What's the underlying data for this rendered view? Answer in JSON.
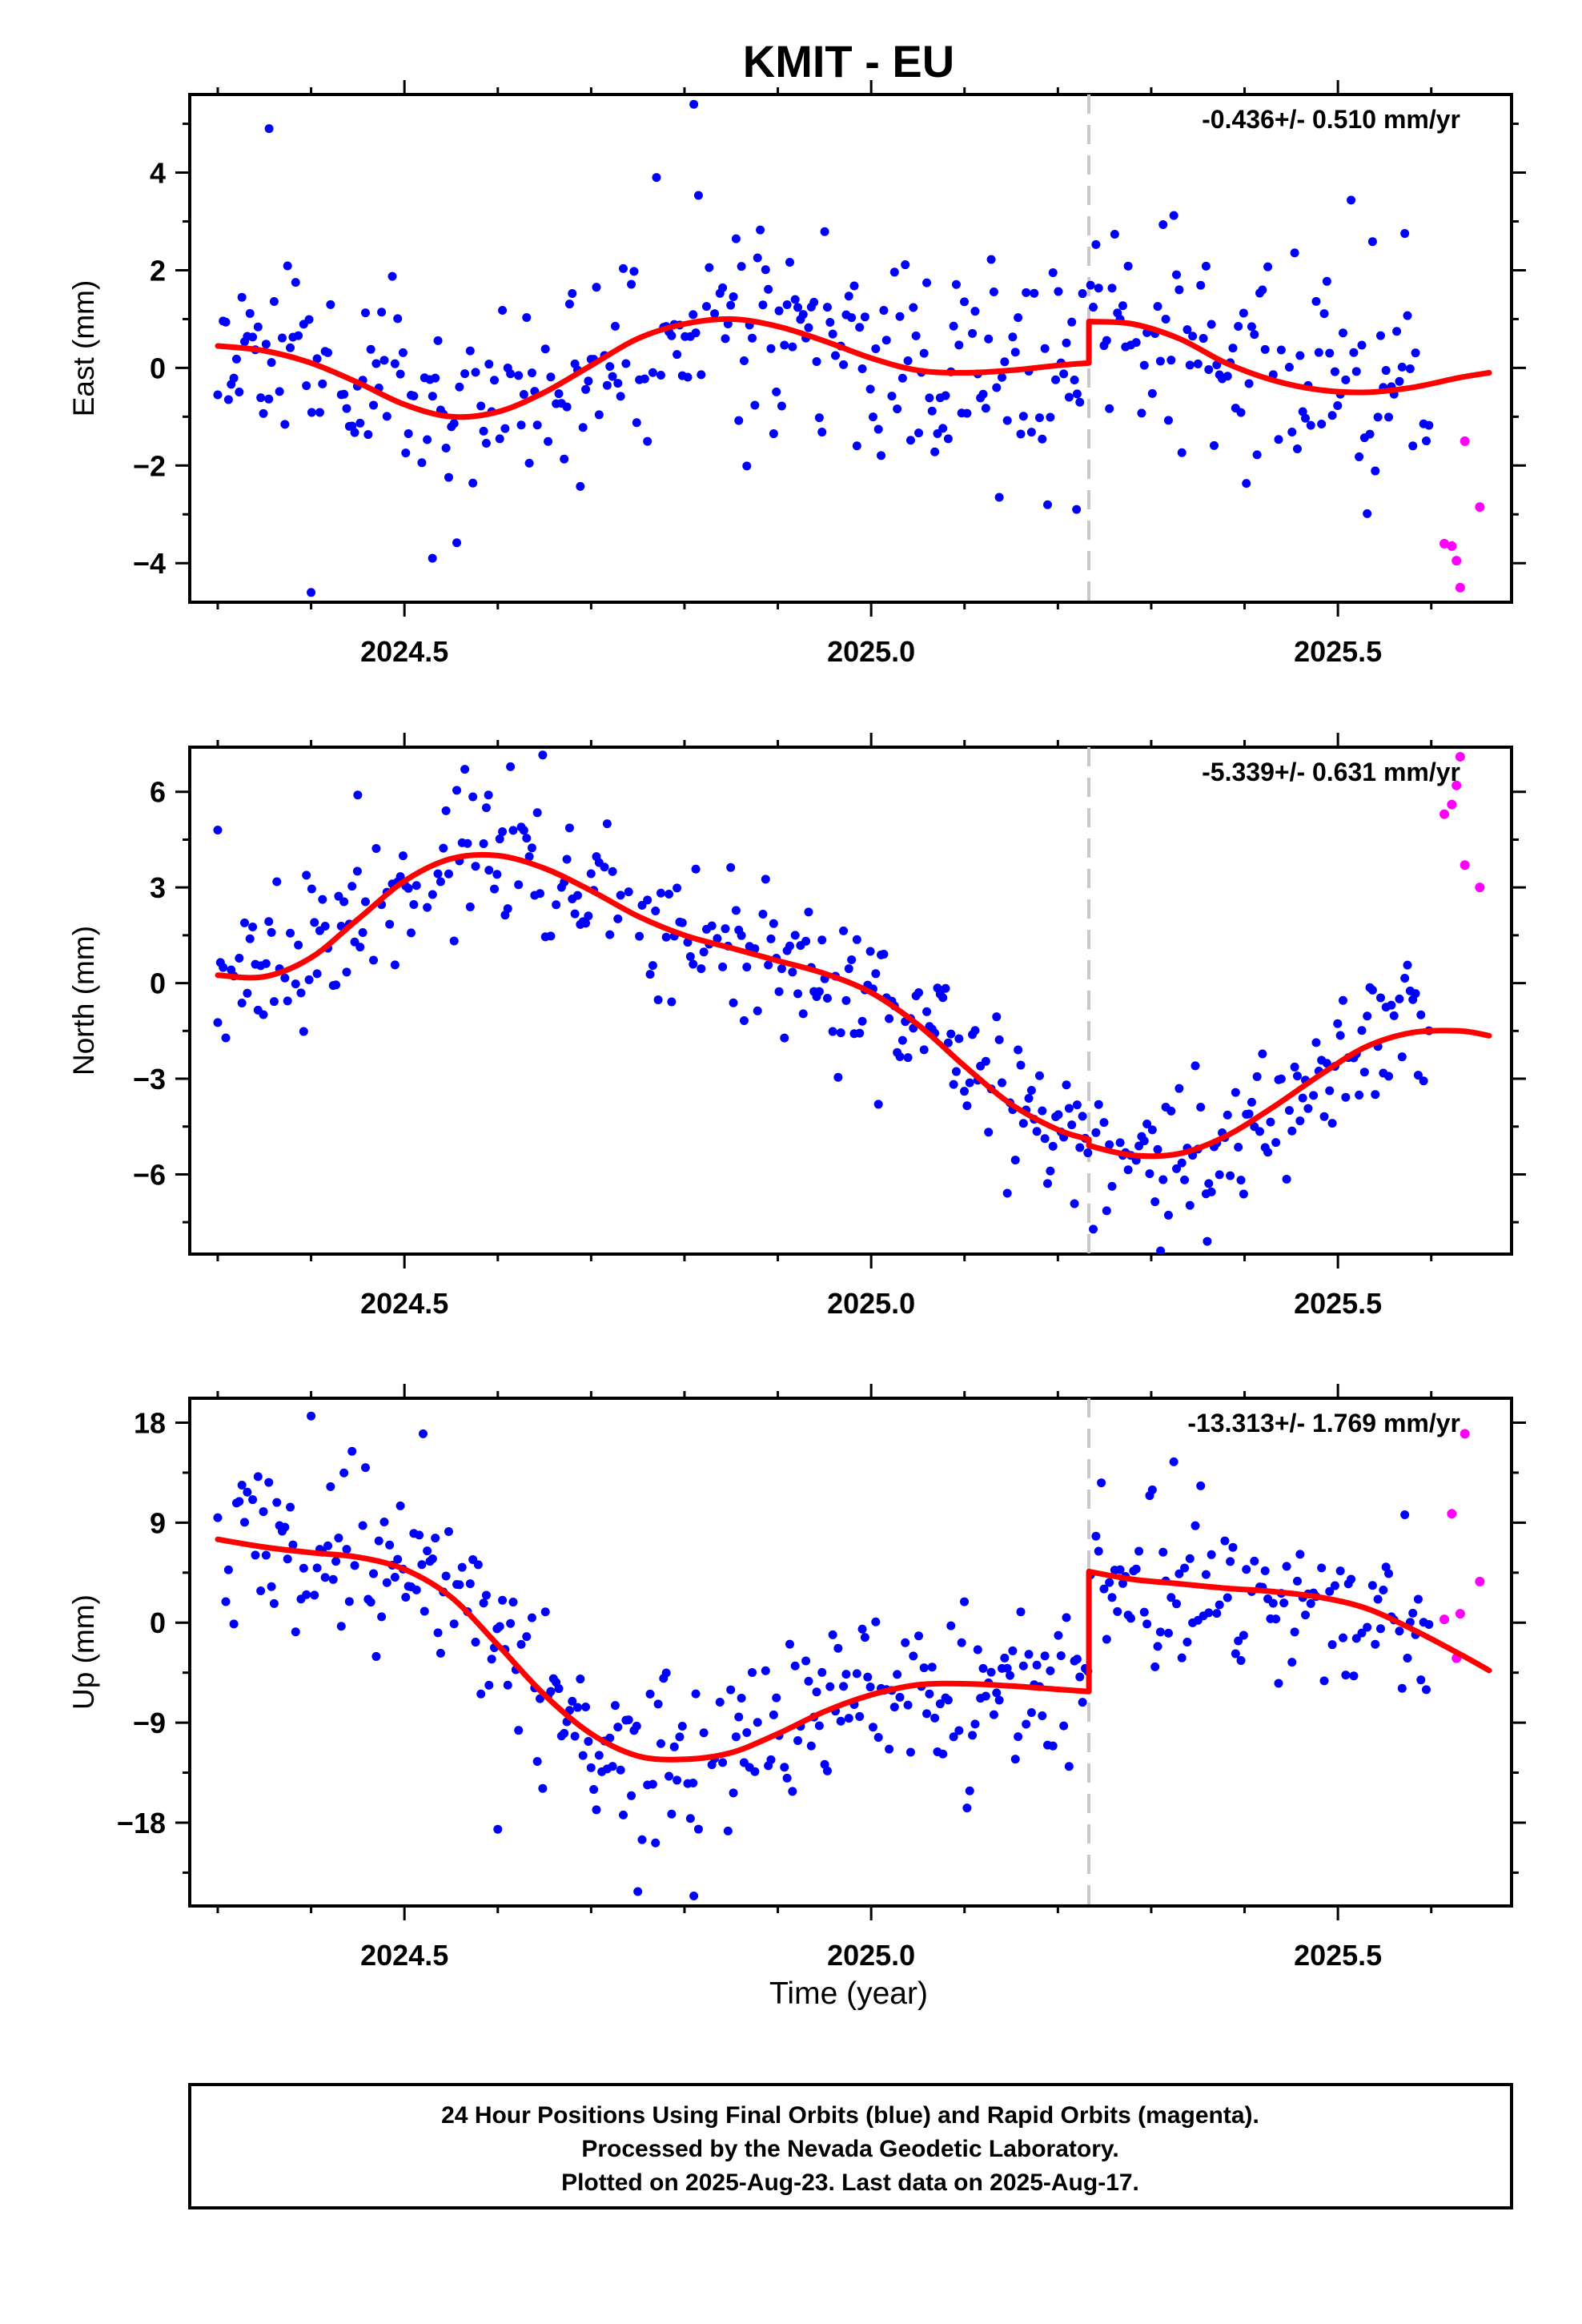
{
  "title": "KMIT - EU",
  "x_axis_label": "Time (year)",
  "colors": {
    "final": "#0000ff",
    "rapid": "#ff00ff",
    "model": "#ff0000",
    "break": "#c8c8c8",
    "frame": "#000000"
  },
  "footer": {
    "line1": "24 Hour Positions Using Final Orbits (blue) and Rapid Orbits (magenta).",
    "line2": "Processed by the Nevada Geodetic Laboratory.",
    "line3": "Plotted on 2025-Aug-23. Last data on 2025-Aug-17."
  },
  "chart_data": [
    {
      "type": "scatter",
      "ylabel": "East (mm)",
      "rate_label": "-0.436+/- 0.510 mm/yr",
      "xlim": [
        2024.27,
        2025.686
      ],
      "ylim": [
        -4.8,
        5.6
      ],
      "x_ticks": [
        2024.5,
        2025.0,
        2025.5
      ],
      "x_tick_labels": [
        "2024.5",
        "2025.0",
        "2025.5"
      ],
      "y_ticks": [
        -4,
        -2,
        0,
        2,
        4
      ],
      "y_tick_labels": [
        "−4",
        "−2",
        "0",
        "2",
        "4"
      ],
      "break_x": 2025.2332,
      "seed": 11,
      "noise": 1.05,
      "outliers": [
        [
          2024.355,
          4.9
        ],
        [
          2024.81,
          5.4
        ],
        [
          2024.4,
          -4.6
        ],
        [
          2024.53,
          -3.9
        ],
        [
          2025.22,
          -2.9
        ],
        [
          2024.77,
          3.9
        ]
      ],
      "model": {
        "segments": [
          {
            "x": [
              2024.3,
              2024.35,
              2024.4,
              2024.45,
              2024.5,
              2024.55,
              2024.6,
              2024.65,
              2024.7,
              2024.75,
              2024.8,
              2024.85,
              2024.9,
              2024.95,
              2025.0,
              2025.05,
              2025.1,
              2025.15,
              2025.2,
              2025.2332
            ],
            "y": [
              0.45,
              0.35,
              0.1,
              -0.3,
              -0.75,
              -1.0,
              -0.9,
              -0.5,
              0.05,
              0.6,
              0.9,
              1.0,
              0.85,
              0.55,
              0.2,
              -0.05,
              -0.1,
              -0.05,
              0.05,
              0.1
            ]
          },
          {
            "x": [
              2025.2332,
              2025.28,
              2025.33,
              2025.38,
              2025.43,
              2025.48,
              2025.53,
              2025.58,
              2025.63,
              2025.662
            ],
            "y": [
              0.95,
              0.9,
              0.6,
              0.1,
              -0.25,
              -0.45,
              -0.5,
              -0.4,
              -0.2,
              -0.1
            ]
          }
        ]
      },
      "rapid": {
        "x": [
          2025.614,
          2025.622,
          2025.627,
          2025.631,
          2025.636,
          2025.652
        ],
        "y": [
          -3.6,
          -3.65,
          -3.95,
          -4.5,
          -1.5,
          -2.85
        ]
      }
    },
    {
      "type": "scatter",
      "ylabel": "North (mm)",
      "rate_label": "-5.339+/- 0.631 mm/yr",
      "xlim": [
        2024.27,
        2025.686
      ],
      "ylim": [
        -8.5,
        7.4
      ],
      "x_ticks": [
        2024.5,
        2025.0,
        2025.5
      ],
      "x_tick_labels": [
        "2024.5",
        "2025.0",
        "2025.5"
      ],
      "y_ticks": [
        -6,
        -3,
        0,
        3,
        6
      ],
      "y_tick_labels": [
        "−6",
        "−3",
        "0",
        "3",
        "6"
      ],
      "break_x": 2025.2332,
      "seed": 23,
      "noise": 1.15,
      "outliers": [
        [
          2024.45,
          5.9
        ],
        [
          2024.59,
          5.9
        ],
        [
          2025.31,
          -8.4
        ],
        [
          2025.36,
          -8.1
        ],
        [
          2024.3,
          4.8
        ]
      ],
      "model": {
        "segments": [
          {
            "x": [
              2024.3,
              2024.35,
              2024.4,
              2024.45,
              2024.5,
              2024.55,
              2024.6,
              2024.65,
              2024.7,
              2024.75,
              2024.8,
              2024.85,
              2024.9,
              2024.95,
              2025.0,
              2025.05,
              2025.1,
              2025.15,
              2025.2,
              2025.2332
            ],
            "y": [
              0.25,
              0.2,
              0.8,
              2.0,
              3.2,
              3.9,
              4.0,
              3.6,
              2.9,
              2.1,
              1.5,
              1.1,
              0.7,
              0.3,
              -0.3,
              -1.3,
              -2.6,
              -3.8,
              -4.6,
              -4.9
            ]
          },
          {
            "x": [
              2025.2332,
              2025.28,
              2025.33,
              2025.38,
              2025.43,
              2025.48,
              2025.53,
              2025.58,
              2025.63,
              2025.662
            ],
            "y": [
              -5.1,
              -5.4,
              -5.35,
              -4.8,
              -3.9,
              -2.9,
              -2.0,
              -1.55,
              -1.5,
              -1.65
            ]
          }
        ]
      },
      "rapid": {
        "x": [
          2025.614,
          2025.622,
          2025.627,
          2025.631,
          2025.636,
          2025.652
        ],
        "y": [
          5.3,
          5.6,
          6.2,
          7.1,
          3.7,
          3.0
        ]
      }
    },
    {
      "type": "scatter",
      "ylabel": "Up (mm)",
      "rate_label": "-13.313+/- 1.769 mm/yr",
      "xlim": [
        2024.27,
        2025.686
      ],
      "ylim": [
        -25.5,
        20.2
      ],
      "x_ticks": [
        2024.5,
        2025.0,
        2025.5
      ],
      "x_tick_labels": [
        "2024.5",
        "2025.0",
        "2025.5"
      ],
      "y_ticks": [
        -18,
        -9,
        0,
        9,
        18
      ],
      "y_tick_labels": [
        "−18",
        "−9",
        "0",
        "9",
        "18"
      ],
      "break_x": 2025.2332,
      "seed": 37,
      "noise": 3.6,
      "outliers": [
        [
          2024.4,
          18.6
        ],
        [
          2024.75,
          -24.2
        ],
        [
          2024.81,
          -24.6
        ],
        [
          2024.52,
          17.0
        ],
        [
          2024.6,
          -18.6
        ]
      ],
      "model": {
        "segments": [
          {
            "x": [
              2024.3,
              2024.35,
              2024.4,
              2024.45,
              2024.5,
              2024.55,
              2024.6,
              2024.65,
              2024.7,
              2024.75,
              2024.8,
              2024.85,
              2024.9,
              2024.95,
              2025.0,
              2025.05,
              2025.1,
              2025.15,
              2025.2,
              2025.2332
            ],
            "y": [
              7.5,
              6.8,
              6.3,
              5.9,
              4.8,
              2.3,
              -2.0,
              -6.5,
              -10.0,
              -12.0,
              -12.3,
              -11.7,
              -10.0,
              -8.0,
              -6.5,
              -5.6,
              -5.5,
              -5.7,
              -6.0,
              -6.2
            ]
          },
          {
            "x": [
              2025.2332,
              2025.28,
              2025.33,
              2025.38,
              2025.43,
              2025.48,
              2025.53,
              2025.58,
              2025.63,
              2025.662
            ],
            "y": [
              4.6,
              3.9,
              3.5,
              3.1,
              2.8,
              2.3,
              1.3,
              -0.6,
              -2.8,
              -4.3
            ]
          }
        ]
      },
      "rapid": {
        "x": [
          2025.614,
          2025.622,
          2025.627,
          2025.631,
          2025.636,
          2025.652
        ],
        "y": [
          0.3,
          9.8,
          -3.2,
          0.8,
          17.0,
          3.7
        ]
      }
    }
  ]
}
